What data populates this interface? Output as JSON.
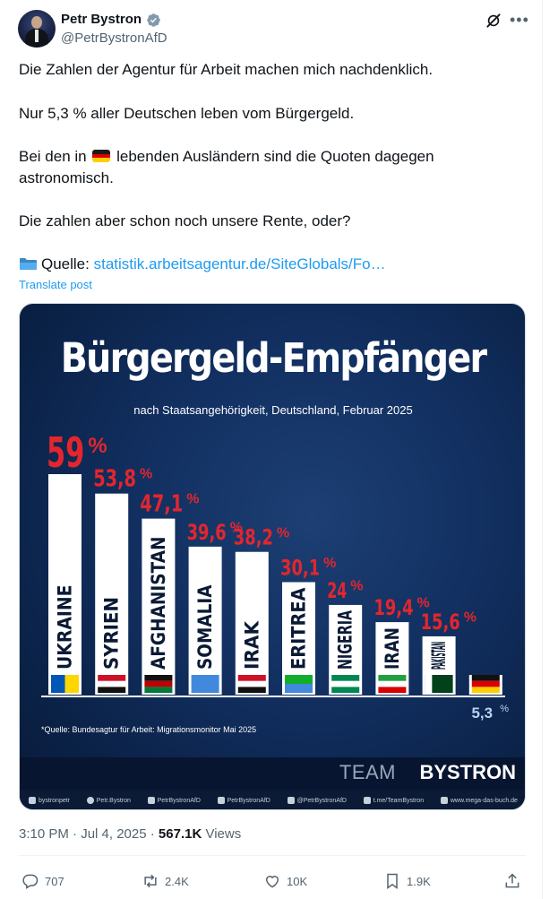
{
  "author": {
    "name": "Petr Bystron",
    "handle": "@PetrBystronAfD"
  },
  "post": {
    "line1": "Die Zahlen der Agentur für Arbeit machen mich nachdenklich.",
    "line2": "Nur 5,3 % aller Deutschen leben vom Bürgergeld.",
    "line3_before": "Bei den in",
    "line3_after": "lebenden Ausländern sind die Quoten dagegen",
    "line4": "astronomisch.",
    "line5": "Die zahlen aber schon noch unsere Rente, oder?",
    "source_label": "Quelle:",
    "source_link": "statistik.arbeitsagentur.de/SiteGlobals/Fo…",
    "translate": "Translate post"
  },
  "infographic": {
    "title": "Bürgergeld-Empfänger",
    "subtitle": "nach Staatsangehörigkeit, Deutschland, Februar 2025",
    "source": "*Quelle: Bundesagtur für Arbeit: Migrationsmonitor Mai 2025",
    "brand_light": "TEAM",
    "brand_bold": "BYSTRON",
    "social": [
      "bystronpetr",
      "Petr.Bystron",
      "PetrBystronAfD",
      "PetrBystronAfD",
      "@PetrBystronAfD",
      "t.me/TeamBystron",
      "www.mega-das-buch.de"
    ]
  },
  "chart_data": {
    "type": "bar",
    "title": "Bürgergeld-Empfänger",
    "subtitle": "nach Staatsangehörigkeit, Deutschland, Februar 2025",
    "categories": [
      "UKRAINE",
      "SYRIEN",
      "AFGHANISTAN",
      "SOMALIA",
      "IRAK",
      "ERITREA",
      "NIGERIA",
      "IRAN",
      "PAKISTAN",
      "DEUTSCHLAND"
    ],
    "values": [
      59,
      53.8,
      47.1,
      39.6,
      38.2,
      30.1,
      24,
      19.4,
      15.6,
      5.3
    ],
    "value_labels": [
      "59",
      "53,8",
      "47,1",
      "39,6",
      "38,2",
      "30,1",
      "24",
      "19,4",
      "15,6",
      "5,3"
    ],
    "unit": "%",
    "ylim": [
      0,
      59
    ],
    "highlight_color": "#e3262d",
    "base_color": "#ffffff"
  },
  "meta": {
    "time": "3:10 PM · Jul 4, 2025 · ",
    "views_count": "567.1K",
    "views_label": " Views"
  },
  "actions": {
    "replies": "707",
    "reposts": "2.4K",
    "likes": "10K",
    "bookmarks": "1.9K"
  }
}
